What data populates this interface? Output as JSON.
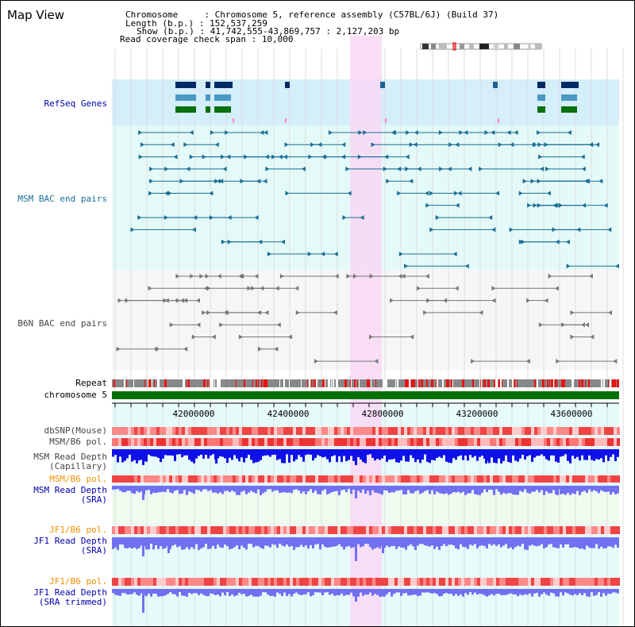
{
  "title": "Map View",
  "header": {
    "chromosome_label": "Chromosome     : ",
    "chromosome_value": "Chromosome 5, reference assembly (C57BL/6J) (Build 37)",
    "length_label": "Length (b.p.) : ",
    "length_value": "152,537,259",
    "show_label": "Show (b.p.) : ",
    "show_value": "41,742,555-43,869,757 : 2,127,203 bp",
    "span_label": "Read coverage check span : ",
    "span_value": "10,000"
  },
  "tracks": {
    "refseq": "RefSeq Genes",
    "msm_bac": "MSM BAC end pairs",
    "b6n_bac": "B6N BAC end pairs",
    "repeat": "Repeat",
    "chromosome": "chromosome 5",
    "dbsnp": "dbSNP(Mouse)",
    "msm_b6_pol": "MSM/B6 pol.",
    "msm_depth_cap_1": "MSM Read Depth",
    "msm_depth_cap_2": "(Capillary)",
    "msm_b6_pol2": "MSM/B6 pol.",
    "msm_depth_sra_1": "MSM Read Depth",
    "msm_depth_sra_2": "(SRA)",
    "jf1_b6_pol": "JF1/B6 pol.",
    "jf1_depth_sra_1": "JF1 Read Depth",
    "jf1_depth_sra_2": "(SRA)",
    "jf1_b6_pol2": "JF1/B6 pol.",
    "jf1_depth_trim_1": "JF1 Read Depth",
    "jf1_depth_trim_2": "(SRA trimmed)"
  },
  "axis": {
    "ticks": [
      "42000000",
      "42400000",
      "42800000",
      "43200000",
      "43600000"
    ]
  },
  "colors": {
    "refseq_bg": "#d4eefa",
    "msm_bg": "#e4faf8",
    "b6n_bg": "#f6f6f6",
    "highlight": "#f8d8f4",
    "chromosome": "#007000",
    "msm_feature": "#1a6e96",
    "b6n_feature": "#777777",
    "depth_blue": "#1010e8",
    "depth_light": "#7070f0"
  }
}
